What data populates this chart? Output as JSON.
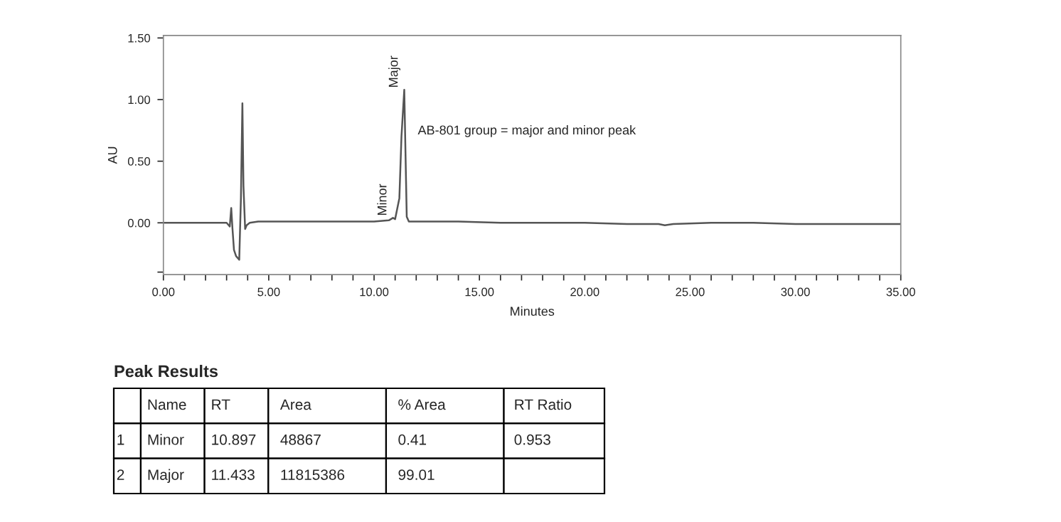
{
  "chart_data": {
    "type": "line",
    "xlabel": "Minutes",
    "ylabel": "AU",
    "x": [
      0,
      3.0,
      3.15,
      3.22,
      3.28,
      3.35,
      3.45,
      3.6,
      3.68,
      3.75,
      3.8,
      3.88,
      3.95,
      4.1,
      4.5,
      6,
      8,
      10,
      10.7,
      10.897,
      11.0,
      11.2,
      11.3,
      11.433,
      11.55,
      11.65,
      12,
      14,
      16,
      18,
      20,
      22,
      23.5,
      23.8,
      24.2,
      26,
      28,
      30,
      32,
      34,
      35
    ],
    "series": [
      {
        "color": "#555555",
        "values": [
          0,
          0,
          -0.03,
          0.12,
          -0.05,
          -0.22,
          -0.27,
          -0.3,
          0.2,
          0.97,
          0.3,
          -0.05,
          -0.02,
          0.0,
          0.01,
          0.01,
          0.01,
          0.01,
          0.02,
          0.04,
          0.03,
          0.2,
          0.7,
          1.08,
          0.05,
          0.01,
          0.01,
          0.01,
          0.0,
          0.0,
          0.0,
          -0.01,
          -0.01,
          -0.02,
          -0.01,
          0.0,
          0.0,
          -0.01,
          -0.01,
          -0.01,
          -0.01
        ]
      }
    ],
    "xlim": [
      0,
      35
    ],
    "xticks": [
      {
        "value": 0,
        "label": "0.00"
      },
      {
        "value": 1,
        "label": null
      },
      {
        "value": 2,
        "label": null
      },
      {
        "value": 3,
        "label": null
      },
      {
        "value": 4,
        "label": null
      },
      {
        "value": 5,
        "label": "5.00"
      },
      {
        "value": 6,
        "label": null
      },
      {
        "value": 7,
        "label": null
      },
      {
        "value": 8,
        "label": null
      },
      {
        "value": 9,
        "label": null
      },
      {
        "value": 10,
        "label": "10.00"
      },
      {
        "value": 11,
        "label": null
      },
      {
        "value": 12,
        "label": null
      },
      {
        "value": 13,
        "label": null
      },
      {
        "value": 14,
        "label": null
      },
      {
        "value": 15,
        "label": "15.00"
      },
      {
        "value": 16,
        "label": null
      },
      {
        "value": 17,
        "label": null
      },
      {
        "value": 18,
        "label": null
      },
      {
        "value": 19,
        "label": null
      },
      {
        "value": 20,
        "label": "20.00"
      },
      {
        "value": 21,
        "label": null
      },
      {
        "value": 22,
        "label": null
      },
      {
        "value": 23,
        "label": null
      },
      {
        "value": 24,
        "label": null
      },
      {
        "value": 25,
        "label": "25.00"
      },
      {
        "value": 26,
        "label": null
      },
      {
        "value": 27,
        "label": null
      },
      {
        "value": 28,
        "label": null
      },
      {
        "value": 29,
        "label": null
      },
      {
        "value": 30,
        "label": "30.00"
      },
      {
        "value": 31,
        "label": null
      },
      {
        "value": 32,
        "label": null
      },
      {
        "value": 33,
        "label": null
      },
      {
        "value": 34,
        "label": null
      },
      {
        "value": 35,
        "label": "35.00"
      }
    ],
    "ylim": [
      -0.42,
      1.52
    ],
    "yticks": [
      {
        "value": -0.4,
        "label": null
      },
      {
        "value": 0,
        "label": "0.00"
      },
      {
        "value": 0.5,
        "label": "0.50"
      },
      {
        "value": 1.0,
        "label": "1.00"
      },
      {
        "value": 1.5,
        "label": "1.50"
      }
    ],
    "grid": false,
    "legend": false,
    "marker": "none",
    "line_style": "solid",
    "annotations": [
      "AB-801 group = major and minor peak",
      {
        "text": "Minor",
        "x": 10.897,
        "y": 0.04
      },
      {
        "text": "Major",
        "x": 11.433,
        "y": 1.08
      },
      "Peak Results",
      "Name",
      "RT",
      "Area",
      "% Area",
      "RT Ratio",
      "1",
      "Minor",
      "10.897",
      "48867",
      "0.41",
      "0.953",
      "2",
      "Major",
      "11.433",
      "11815386",
      "99.01"
    ]
  }
}
